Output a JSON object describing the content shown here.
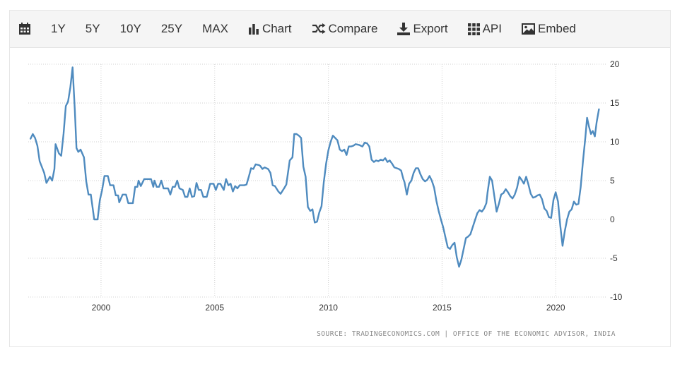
{
  "toolbar": {
    "items": [
      {
        "key": "calendar",
        "label": "",
        "icon": "calendar-icon"
      },
      {
        "key": "1y",
        "label": "1Y"
      },
      {
        "key": "5y",
        "label": "5Y"
      },
      {
        "key": "10y",
        "label": "10Y"
      },
      {
        "key": "25y",
        "label": "25Y"
      },
      {
        "key": "max",
        "label": "MAX"
      },
      {
        "key": "chart",
        "label": "Chart",
        "icon": "bar-chart-icon"
      },
      {
        "key": "compare",
        "label": "Compare",
        "icon": "shuffle-icon"
      },
      {
        "key": "export",
        "label": "Export",
        "icon": "download-icon"
      },
      {
        "key": "api",
        "label": "API",
        "icon": "grid-icon"
      },
      {
        "key": "embed",
        "label": "Embed",
        "icon": "image-icon"
      }
    ]
  },
  "source_text": "SOURCE: TRADINGECONOMICS.COM | OFFICE OF THE ECONOMIC ADVISOR, INDIA",
  "colors": {
    "line": "#4f8bbf",
    "grid": "#d0d0d0",
    "axis_text": "#333333"
  },
  "chart_data": {
    "type": "line",
    "title": "",
    "xlabel": "",
    "ylabel": "",
    "xlim": [
      1996.8,
      2022.2
    ],
    "ylim": [
      -10,
      20
    ],
    "x_ticks": [
      2000,
      2005,
      2010,
      2015,
      2020
    ],
    "y_ticks": [
      20,
      15,
      10,
      5,
      0,
      -5,
      -10
    ],
    "grid": true,
    "legend": "none",
    "series": [
      {
        "points": [
          [
            1996.9,
            10.4
          ],
          [
            1997.0,
            11.0
          ],
          [
            1997.1,
            10.5
          ],
          [
            1997.2,
            9.5
          ],
          [
            1997.3,
            7.5
          ],
          [
            1997.5,
            6.0
          ],
          [
            1997.6,
            4.7
          ],
          [
            1997.75,
            5.5
          ],
          [
            1997.85,
            5.0
          ],
          [
            1997.95,
            6.5
          ],
          [
            1998.0,
            9.7
          ],
          [
            1998.15,
            8.5
          ],
          [
            1998.25,
            8.2
          ],
          [
            1998.35,
            11.0
          ],
          [
            1998.45,
            14.6
          ],
          [
            1998.55,
            15.2
          ],
          [
            1998.65,
            17.0
          ],
          [
            1998.75,
            19.6
          ],
          [
            1998.85,
            14.0
          ],
          [
            1998.92,
            9.2
          ],
          [
            1999.0,
            8.7
          ],
          [
            1999.1,
            9.0
          ],
          [
            1999.25,
            8.0
          ],
          [
            1999.35,
            4.9
          ],
          [
            1999.45,
            3.2
          ],
          [
            1999.55,
            3.2
          ],
          [
            1999.7,
            0.0
          ],
          [
            1999.85,
            0.0
          ],
          [
            1999.95,
            2.5
          ],
          [
            2000.05,
            3.8
          ],
          [
            2000.15,
            5.6
          ],
          [
            2000.3,
            5.6
          ],
          [
            2000.4,
            4.4
          ],
          [
            2000.55,
            4.4
          ],
          [
            2000.65,
            3.1
          ],
          [
            2000.75,
            3.1
          ],
          [
            2000.8,
            2.2
          ],
          [
            2000.95,
            3.2
          ],
          [
            2001.1,
            3.2
          ],
          [
            2001.2,
            2.1
          ],
          [
            2001.4,
            2.1
          ],
          [
            2001.5,
            4.2
          ],
          [
            2001.6,
            4.2
          ],
          [
            2001.65,
            5.0
          ],
          [
            2001.75,
            4.3
          ],
          [
            2001.9,
            5.2
          ],
          [
            2002.2,
            5.2
          ],
          [
            2002.3,
            4.2
          ],
          [
            2002.35,
            5.0
          ],
          [
            2002.45,
            4.2
          ],
          [
            2002.55,
            4.2
          ],
          [
            2002.65,
            5.0
          ],
          [
            2002.75,
            4.0
          ],
          [
            2002.95,
            4.0
          ],
          [
            2003.05,
            3.2
          ],
          [
            2003.15,
            4.2
          ],
          [
            2003.25,
            4.2
          ],
          [
            2003.35,
            5.0
          ],
          [
            2003.45,
            4.0
          ],
          [
            2003.6,
            3.8
          ],
          [
            2003.7,
            2.9
          ],
          [
            2003.8,
            2.9
          ],
          [
            2003.9,
            4.0
          ],
          [
            2004.0,
            2.9
          ],
          [
            2004.1,
            3.0
          ],
          [
            2004.2,
            4.7
          ],
          [
            2004.3,
            3.8
          ],
          [
            2004.4,
            3.8
          ],
          [
            2004.5,
            2.9
          ],
          [
            2004.65,
            2.9
          ],
          [
            2004.8,
            4.6
          ],
          [
            2004.95,
            4.6
          ],
          [
            2005.05,
            3.8
          ],
          [
            2005.15,
            4.6
          ],
          [
            2005.25,
            4.6
          ],
          [
            2005.4,
            3.8
          ],
          [
            2005.5,
            5.2
          ],
          [
            2005.6,
            4.4
          ],
          [
            2005.7,
            4.6
          ],
          [
            2005.8,
            3.6
          ],
          [
            2005.9,
            4.3
          ],
          [
            2006.0,
            4.0
          ],
          [
            2006.1,
            4.4
          ],
          [
            2006.3,
            4.4
          ],
          [
            2006.4,
            4.5
          ],
          [
            2006.5,
            5.5
          ],
          [
            2006.6,
            6.6
          ],
          [
            2006.7,
            6.5
          ],
          [
            2006.8,
            7.1
          ],
          [
            2006.95,
            7.0
          ],
          [
            2007.0,
            6.9
          ],
          [
            2007.1,
            6.5
          ],
          [
            2007.2,
            6.7
          ],
          [
            2007.35,
            6.5
          ],
          [
            2007.45,
            6.0
          ],
          [
            2007.55,
            4.4
          ],
          [
            2007.65,
            4.3
          ],
          [
            2007.8,
            3.6
          ],
          [
            2007.9,
            3.3
          ],
          [
            2008.05,
            4.0
          ],
          [
            2008.15,
            4.5
          ],
          [
            2008.3,
            7.6
          ],
          [
            2008.42,
            8.0
          ],
          [
            2008.5,
            11.0
          ],
          [
            2008.6,
            11.0
          ],
          [
            2008.7,
            10.8
          ],
          [
            2008.8,
            10.5
          ],
          [
            2008.9,
            6.8
          ],
          [
            2009.0,
            5.5
          ],
          [
            2009.1,
            1.6
          ],
          [
            2009.2,
            1.1
          ],
          [
            2009.3,
            1.3
          ],
          [
            2009.4,
            -0.4
          ],
          [
            2009.5,
            -0.3
          ],
          [
            2009.6,
            0.9
          ],
          [
            2009.7,
            1.7
          ],
          [
            2009.8,
            4.8
          ],
          [
            2009.9,
            7.2
          ],
          [
            2010.0,
            8.9
          ],
          [
            2010.1,
            10.0
          ],
          [
            2010.2,
            10.8
          ],
          [
            2010.3,
            10.5
          ],
          [
            2010.4,
            10.2
          ],
          [
            2010.5,
            9.0
          ],
          [
            2010.6,
            8.8
          ],
          [
            2010.7,
            9.0
          ],
          [
            2010.8,
            8.3
          ],
          [
            2010.9,
            9.4
          ],
          [
            2011.0,
            9.4
          ],
          [
            2011.1,
            9.5
          ],
          [
            2011.2,
            9.7
          ],
          [
            2011.35,
            9.6
          ],
          [
            2011.5,
            9.4
          ],
          [
            2011.6,
            9.9
          ],
          [
            2011.7,
            9.8
          ],
          [
            2011.8,
            9.4
          ],
          [
            2011.9,
            7.7
          ],
          [
            2012.0,
            7.4
          ],
          [
            2012.1,
            7.6
          ],
          [
            2012.2,
            7.5
          ],
          [
            2012.3,
            7.7
          ],
          [
            2012.4,
            7.6
          ],
          [
            2012.5,
            7.9
          ],
          [
            2012.6,
            7.4
          ],
          [
            2012.7,
            7.6
          ],
          [
            2012.8,
            7.2
          ],
          [
            2012.9,
            6.7
          ],
          [
            2013.0,
            6.6
          ],
          [
            2013.1,
            6.5
          ],
          [
            2013.2,
            6.3
          ],
          [
            2013.3,
            5.2
          ],
          [
            2013.35,
            4.8
          ],
          [
            2013.45,
            3.2
          ],
          [
            2013.55,
            4.6
          ],
          [
            2013.65,
            5.0
          ],
          [
            2013.75,
            6.0
          ],
          [
            2013.85,
            6.6
          ],
          [
            2013.95,
            6.6
          ],
          [
            2014.05,
            5.8
          ],
          [
            2014.15,
            5.2
          ],
          [
            2014.25,
            4.9
          ],
          [
            2014.35,
            5.1
          ],
          [
            2014.45,
            5.6
          ],
          [
            2014.55,
            5.0
          ],
          [
            2014.65,
            4.1
          ],
          [
            2014.75,
            2.4
          ],
          [
            2014.85,
            1.1
          ],
          [
            2014.95,
            0.0
          ],
          [
            2015.05,
            -1.0
          ],
          [
            2015.15,
            -2.3
          ],
          [
            2015.25,
            -3.6
          ],
          [
            2015.35,
            -3.8
          ],
          [
            2015.45,
            -3.3
          ],
          [
            2015.55,
            -3.0
          ],
          [
            2015.65,
            -4.9
          ],
          [
            2015.75,
            -6.1
          ],
          [
            2015.85,
            -5.2
          ],
          [
            2015.95,
            -3.8
          ],
          [
            2016.05,
            -2.4
          ],
          [
            2016.15,
            -2.2
          ],
          [
            2016.25,
            -1.9
          ],
          [
            2016.35,
            -1.0
          ],
          [
            2016.45,
            -0.1
          ],
          [
            2016.55,
            0.8
          ],
          [
            2016.65,
            1.2
          ],
          [
            2016.75,
            1.0
          ],
          [
            2016.85,
            1.4
          ],
          [
            2016.95,
            2.1
          ],
          [
            2017.0,
            3.4
          ],
          [
            2017.1,
            5.5
          ],
          [
            2017.2,
            5.0
          ],
          [
            2017.3,
            3.0
          ],
          [
            2017.4,
            1.0
          ],
          [
            2017.5,
            2.0
          ],
          [
            2017.6,
            3.2
          ],
          [
            2017.7,
            3.4
          ],
          [
            2017.8,
            3.9
          ],
          [
            2017.9,
            3.5
          ],
          [
            2018.0,
            3.0
          ],
          [
            2018.1,
            2.7
          ],
          [
            2018.2,
            3.2
          ],
          [
            2018.3,
            4.1
          ],
          [
            2018.4,
            5.5
          ],
          [
            2018.5,
            5.1
          ],
          [
            2018.6,
            4.6
          ],
          [
            2018.7,
            5.5
          ],
          [
            2018.8,
            4.5
          ],
          [
            2018.9,
            3.3
          ],
          [
            2019.0,
            2.8
          ],
          [
            2019.1,
            2.9
          ],
          [
            2019.2,
            3.1
          ],
          [
            2019.3,
            3.2
          ],
          [
            2019.4,
            2.6
          ],
          [
            2019.5,
            1.4
          ],
          [
            2019.6,
            1.1
          ],
          [
            2019.7,
            0.3
          ],
          [
            2019.8,
            0.2
          ],
          [
            2019.9,
            2.5
          ],
          [
            2020.0,
            3.5
          ],
          [
            2020.1,
            2.3
          ],
          [
            2020.2,
            -0.8
          ],
          [
            2020.3,
            -3.4
          ],
          [
            2020.4,
            -1.5
          ],
          [
            2020.5,
            0.0
          ],
          [
            2020.6,
            1.0
          ],
          [
            2020.7,
            1.3
          ],
          [
            2020.8,
            2.3
          ],
          [
            2020.9,
            1.9
          ],
          [
            2021.0,
            2.0
          ],
          [
            2021.1,
            4.2
          ],
          [
            2021.2,
            7.5
          ],
          [
            2021.3,
            10.5
          ],
          [
            2021.38,
            13.1
          ],
          [
            2021.46,
            12.0
          ],
          [
            2021.55,
            11.0
          ],
          [
            2021.63,
            11.4
          ],
          [
            2021.72,
            10.7
          ],
          [
            2021.8,
            12.5
          ],
          [
            2021.9,
            14.2
          ]
        ]
      }
    ]
  }
}
